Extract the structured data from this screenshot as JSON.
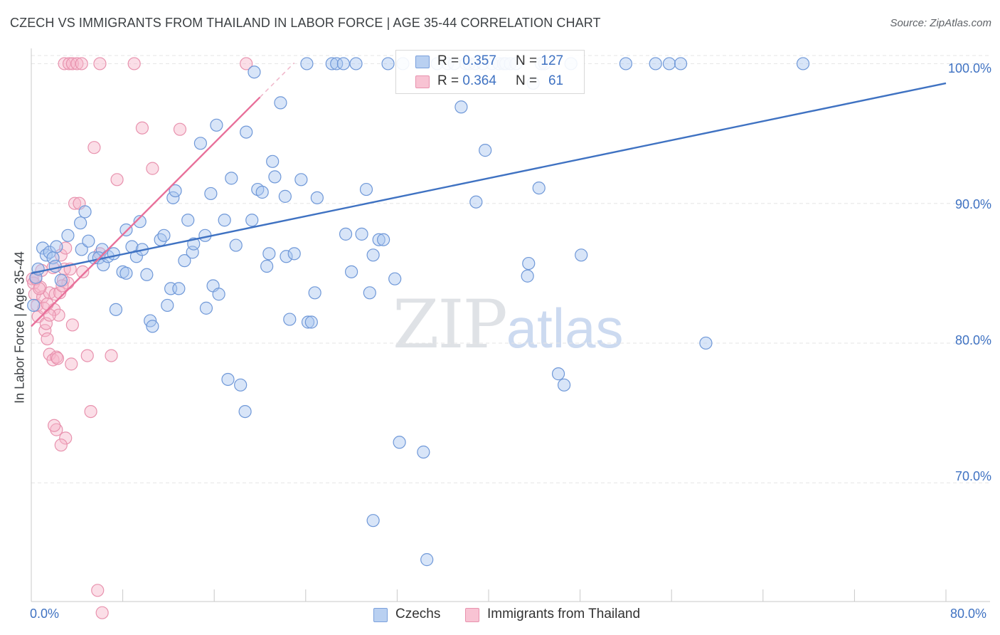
{
  "header": {
    "title": "CZECH VS IMMIGRANTS FROM THAILAND IN LABOR FORCE | AGE 35-44 CORRELATION CHART",
    "source": "Source: ZipAtlas.com"
  },
  "legend": {
    "series": [
      {
        "r_label": "R =",
        "r_value": "0.357",
        "n_label": "N =",
        "n_value": "127"
      },
      {
        "r_label": "R =",
        "r_value": "0.364",
        "n_label": "N =",
        "n_value": "61"
      }
    ]
  },
  "bottom_legend": {
    "czechs": "Czechs",
    "thailand": "Immigrants from Thailand"
  },
  "watermark": {
    "zip": "ZIP",
    "atlas": "atlas"
  },
  "colors": {
    "blue": "#3f72c2",
    "blue_fill": "#a9c6ef",
    "pink": "#e8709a",
    "pink_fill": "#f6b6c9"
  },
  "chart_data": {
    "type": "scatter",
    "xlabel": "",
    "ylabel": "In Labor Force | Age 35-44",
    "xlim": [
      0,
      80
    ],
    "ylim": [
      61.5,
      101.5
    ],
    "x_tick_labels": [
      "0.0%",
      "80.0%"
    ],
    "y_ticks": [
      70,
      80,
      90,
      100
    ],
    "y_tick_labels": [
      "70.0%",
      "80.0%",
      "90.0%",
      "100.0%"
    ],
    "grid": true,
    "legend_position": "top-center",
    "series": [
      {
        "name": "Czechs",
        "color": "#3f72c2",
        "trend": {
          "x": [
            0,
            80
          ],
          "y": [
            85.0,
            98.6
          ]
        },
        "points": [
          [
            0.2,
            82.7
          ],
          [
            0.4,
            84.7
          ],
          [
            0.6,
            85.3
          ],
          [
            1,
            86.8
          ],
          [
            1.3,
            86.3
          ],
          [
            1.6,
            86.5
          ],
          [
            1.9,
            86.1
          ],
          [
            2.1,
            85.5
          ],
          [
            3.2,
            87.7
          ],
          [
            2.2,
            86.9
          ],
          [
            2.6,
            84.5
          ],
          [
            4.3,
            88.6
          ],
          [
            4.4,
            86.7
          ],
          [
            5,
            87.3
          ],
          [
            4.7,
            89.4
          ],
          [
            5.5,
            86.1
          ],
          [
            6.2,
            86.7
          ],
          [
            5.9,
            86.1
          ],
          [
            6.3,
            85.6
          ],
          [
            6.7,
            86.2
          ],
          [
            7.2,
            86.4
          ],
          [
            7.4,
            82.4
          ],
          [
            8.0,
            85.1
          ],
          [
            8.3,
            85.0
          ],
          [
            8.3,
            88.1
          ],
          [
            8.8,
            86.9
          ],
          [
            9.2,
            86.2
          ],
          [
            9.5,
            88.7
          ],
          [
            9.7,
            86.7
          ],
          [
            10.1,
            84.9
          ],
          [
            10.4,
            81.6
          ],
          [
            10.6,
            81.2
          ],
          [
            11.3,
            87.4
          ],
          [
            11.6,
            87.7
          ],
          [
            11.9,
            82.7
          ],
          [
            12.2,
            83.9
          ],
          [
            12.4,
            90.4
          ],
          [
            12.6,
            90.9
          ],
          [
            12.9,
            83.9
          ],
          [
            13.4,
            85.9
          ],
          [
            13.7,
            88.8
          ],
          [
            14.1,
            86.5
          ],
          [
            14.2,
            87.1
          ],
          [
            14.8,
            94.3
          ],
          [
            15.2,
            87.7
          ],
          [
            15.3,
            82.5
          ],
          [
            15.7,
            90.7
          ],
          [
            15.9,
            84.1
          ],
          [
            16.2,
            95.6
          ],
          [
            16.4,
            83.5
          ],
          [
            16.9,
            88.8
          ],
          [
            17.2,
            77.4
          ],
          [
            17.5,
            91.8
          ],
          [
            17.9,
            87.0
          ],
          [
            18.3,
            77.0
          ],
          [
            18.7,
            75.1
          ],
          [
            18.8,
            95.1
          ],
          [
            19.3,
            88.8
          ],
          [
            19.5,
            99.4
          ],
          [
            19.8,
            91.0
          ],
          [
            20.2,
            90.8
          ],
          [
            20.6,
            85.5
          ],
          [
            20.8,
            86.4
          ],
          [
            21.1,
            93.0
          ],
          [
            21.3,
            91.9
          ],
          [
            21.8,
            97.2
          ],
          [
            22.2,
            90.5
          ],
          [
            22.3,
            86.2
          ],
          [
            22.6,
            81.7
          ],
          [
            23.0,
            86.4
          ],
          [
            23.6,
            91.7
          ],
          [
            24.2,
            81.5
          ],
          [
            24.5,
            81.5
          ],
          [
            24.8,
            83.6
          ],
          [
            25.0,
            90.4
          ],
          [
            24.1,
            100
          ],
          [
            26.3,
            100
          ],
          [
            26.7,
            100
          ],
          [
            27.3,
            100
          ],
          [
            27.5,
            87.8
          ],
          [
            28.0,
            85.1
          ],
          [
            28.4,
            100
          ],
          [
            28.9,
            87.8
          ],
          [
            29.3,
            91.0
          ],
          [
            29.6,
            83.6
          ],
          [
            29.9,
            86.3
          ],
          [
            30.4,
            87.4
          ],
          [
            30.8,
            87.4
          ],
          [
            31.2,
            100
          ],
          [
            32.2,
            72.9
          ],
          [
            31.8,
            84.6
          ],
          [
            32.5,
            100
          ],
          [
            34.3,
            72.2
          ],
          [
            34.6,
            64.5
          ],
          [
            35.5,
            100
          ],
          [
            36.4,
            100
          ],
          [
            37.0,
            100
          ],
          [
            37.6,
            96.9
          ],
          [
            38.0,
            100
          ],
          [
            38.3,
            100
          ],
          [
            38.8,
            100
          ],
          [
            39.5,
            100
          ],
          [
            38.9,
            90.1
          ],
          [
            39.7,
            93.8
          ],
          [
            40.3,
            100
          ],
          [
            40.9,
            100
          ],
          [
            41.3,
            100
          ],
          [
            41.5,
            100
          ],
          [
            41.9,
            100
          ],
          [
            42.4,
            100
          ],
          [
            43.4,
            84.8
          ],
          [
            43.5,
            85.7
          ],
          [
            43.9,
            98.6
          ],
          [
            44.4,
            91.1
          ],
          [
            44.6,
            100
          ],
          [
            44.9,
            100
          ],
          [
            46.1,
            77.8
          ],
          [
            46.6,
            77.0
          ],
          [
            47.2,
            100
          ],
          [
            48.1,
            86.3
          ],
          [
            52.0,
            100
          ],
          [
            54.6,
            100
          ],
          [
            55.8,
            100
          ],
          [
            56.8,
            100
          ],
          [
            59.0,
            80.0
          ],
          [
            67.5,
            100
          ],
          [
            29.9,
            67.3
          ]
        ]
      },
      {
        "name": "Immigrants from Thailand",
        "color": "#e8709a",
        "trend": {
          "x": [
            0,
            20.0
          ],
          "y": [
            81.2,
            97.6
          ]
        },
        "points": [
          [
            0.1,
            84.6
          ],
          [
            0.2,
            84.3
          ],
          [
            0.3,
            83.5
          ],
          [
            0.5,
            82.7
          ],
          [
            0.6,
            81.9
          ],
          [
            0.8,
            84.0
          ],
          [
            1.0,
            83.3
          ],
          [
            1.1,
            82.5
          ],
          [
            1.2,
            80.9
          ],
          [
            1.3,
            81.4
          ],
          [
            1.4,
            80.3
          ],
          [
            1.6,
            79.2
          ],
          [
            1.6,
            83.6
          ],
          [
            1.9,
            78.8
          ],
          [
            2.0,
            82.4
          ],
          [
            2.1,
            83.5
          ],
          [
            2.2,
            79.0
          ],
          [
            2.3,
            78.9
          ],
          [
            2.5,
            83.6
          ],
          [
            2.6,
            86.3
          ],
          [
            2.8,
            84.5
          ],
          [
            2.9,
            85.3
          ],
          [
            3.0,
            86.8
          ],
          [
            3.0,
            73.2
          ],
          [
            2.6,
            72.7
          ],
          [
            2.2,
            73.8
          ],
          [
            2.0,
            74.1
          ],
          [
            3.4,
            85.3
          ],
          [
            3.5,
            78.5
          ],
          [
            3.6,
            81.3
          ],
          [
            3.8,
            90.0
          ],
          [
            4.2,
            90.0
          ],
          [
            4.5,
            85.1
          ],
          [
            4.9,
            79.1
          ],
          [
            5.2,
            75.1
          ],
          [
            5.5,
            94.0
          ],
          [
            6.0,
            86.4
          ],
          [
            7.0,
            79.1
          ],
          [
            7.5,
            91.7
          ],
          [
            9.7,
            95.4
          ],
          [
            10.6,
            92.5
          ],
          [
            13.0,
            95.3
          ],
          [
            2.9,
            100
          ],
          [
            3.3,
            100
          ],
          [
            3.6,
            100
          ],
          [
            4.0,
            100
          ],
          [
            4.4,
            100
          ],
          [
            6.0,
            100
          ],
          [
            9.0,
            100
          ],
          [
            18.8,
            100
          ],
          [
            5.8,
            62.3
          ],
          [
            6.2,
            60.7
          ],
          [
            0.4,
            84.6
          ],
          [
            0.7,
            83.9
          ],
          [
            1.4,
            82.8
          ],
          [
            1.9,
            85.4
          ],
          [
            2.4,
            82.0
          ],
          [
            0.9,
            85.2
          ],
          [
            1.6,
            82.0
          ],
          [
            3.2,
            84.3
          ],
          [
            2.7,
            84.1
          ]
        ]
      }
    ]
  }
}
